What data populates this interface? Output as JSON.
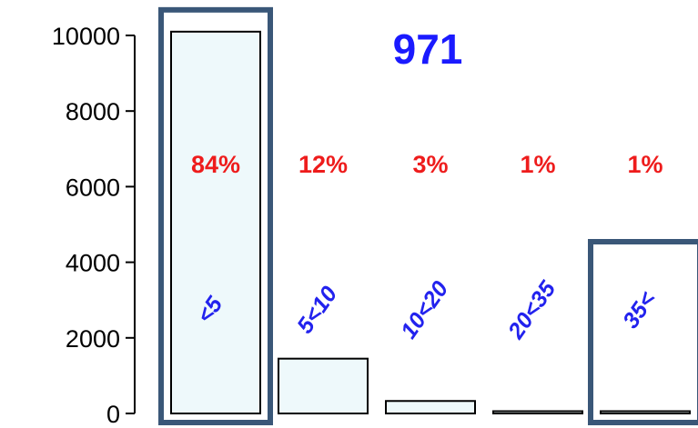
{
  "chart_data": {
    "type": "bar",
    "title": "971",
    "categories": [
      "<5",
      "5<10",
      "10<20",
      "20<35",
      "35<"
    ],
    "values": [
      10100,
      1450,
      330,
      60,
      60
    ],
    "percent_labels": [
      "84%",
      "12%",
      "3%",
      "1%",
      "1%"
    ],
    "highlighted_categories": [
      "<5",
      "35<"
    ],
    "ylim": [
      0,
      10300
    ],
    "yticks": [
      "0",
      "2000",
      "4000",
      "6000",
      "8000",
      "10000"
    ],
    "xlabel": "",
    "ylabel": "",
    "grid": false
  },
  "colors": {
    "bar_fill": "#eef9fb",
    "bar_stroke": "#000000",
    "highlight_box": "#3a5778",
    "title": "#1a1aff",
    "percent": "#ee1c1c",
    "category": "#2222ee"
  }
}
